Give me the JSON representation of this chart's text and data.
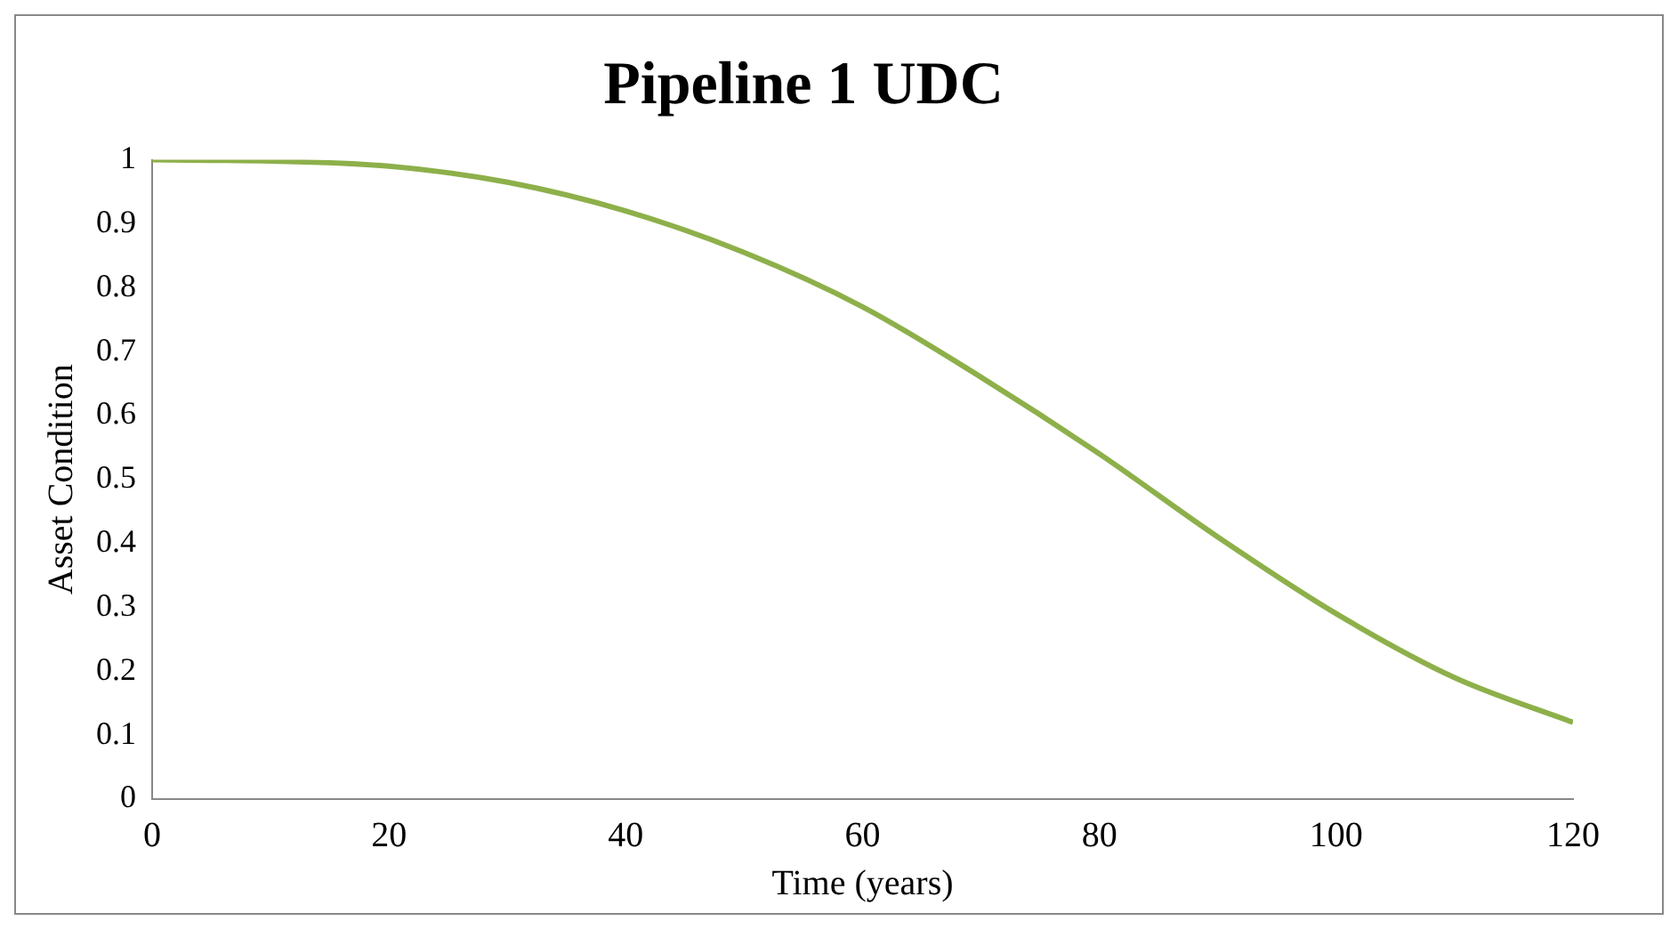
{
  "chart_data": {
    "type": "line",
    "title": "Pipeline 1 UDC",
    "xlabel": "Time (years)",
    "ylabel": "Asset Condition",
    "x": [
      0,
      10,
      20,
      30,
      40,
      50,
      60,
      70,
      80,
      90,
      100,
      110,
      120
    ],
    "series": [
      {
        "color": "#8db04a",
        "values": [
          1.0,
          0.998,
          0.99,
          0.965,
          0.92,
          0.855,
          0.77,
          0.66,
          0.54,
          0.41,
          0.29,
          0.19,
          0.12
        ]
      }
    ],
    "xlim": [
      0,
      120
    ],
    "xticks": [
      0,
      20,
      40,
      60,
      80,
      100,
      120
    ],
    "ylim": [
      0,
      1
    ],
    "yticks": [
      0,
      0.1,
      0.2,
      0.3,
      0.4,
      0.5,
      0.6,
      0.7,
      0.8,
      0.9,
      1
    ],
    "grid": false,
    "legend": false
  }
}
